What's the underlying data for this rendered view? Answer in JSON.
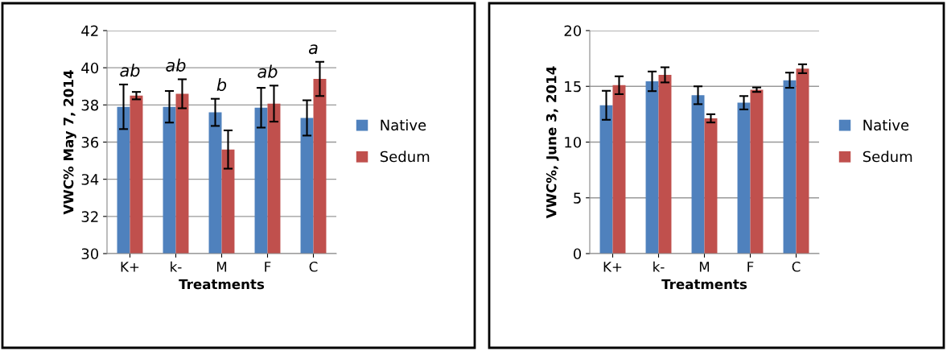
{
  "chart_data": [
    {
      "type": "bar",
      "categories": [
        "K+",
        "k-",
        "M",
        "F",
        "C"
      ],
      "xlabel": "Treatments",
      "ylabel": "VWC% May 7, 2014",
      "ylim": [
        30,
        42
      ],
      "yticks": [
        30,
        32,
        34,
        36,
        38,
        40,
        42
      ],
      "grid": "y",
      "legend": "right",
      "series": [
        {
          "name": "Native",
          "color": "#4f81bd",
          "values": [
            37.9,
            37.9,
            37.6,
            37.85,
            37.3
          ],
          "errors": [
            1.2,
            0.85,
            0.73,
            1.07,
            0.95
          ]
        },
        {
          "name": "Sedum",
          "color": "#c0504d",
          "values": [
            38.5,
            38.6,
            35.6,
            38.07,
            39.4
          ],
          "errors": [
            0.2,
            0.78,
            1.03,
            0.97,
            0.92
          ]
        }
      ],
      "annotations": [
        "ab",
        "ab",
        "b",
        "ab",
        "a"
      ]
    },
    {
      "type": "bar",
      "categories": [
        "K+",
        "k-",
        "M",
        "F",
        "C"
      ],
      "xlabel": "Treatments",
      "ylabel": "VWC%, June 3, 2014",
      "ylim": [
        0,
        20
      ],
      "yticks": [
        0,
        5,
        10,
        15,
        20
      ],
      "grid": "y",
      "legend": "right",
      "series": [
        {
          "name": "Native",
          "color": "#4f81bd",
          "values": [
            13.3,
            15.45,
            14.2,
            13.53,
            15.55
          ],
          "errors": [
            1.3,
            0.88,
            0.8,
            0.6,
            0.68
          ]
        },
        {
          "name": "Sedum",
          "color": "#c0504d",
          "values": [
            15.1,
            16.03,
            12.13,
            14.7,
            16.58
          ],
          "errors": [
            0.8,
            0.68,
            0.37,
            0.2,
            0.4
          ]
        }
      ]
    }
  ]
}
